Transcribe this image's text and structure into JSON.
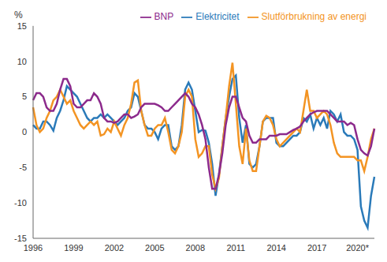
{
  "chart_data": {
    "type": "line",
    "y_label": "%",
    "categories": [
      "1996",
      null,
      null,
      null,
      null,
      null,
      null,
      null,
      null,
      null,
      null,
      null,
      "1999",
      null,
      null,
      null,
      null,
      null,
      null,
      null,
      null,
      null,
      null,
      null,
      "2002",
      null,
      null,
      null,
      null,
      null,
      null,
      null,
      null,
      null,
      null,
      null,
      "2005",
      null,
      null,
      null,
      null,
      null,
      null,
      null,
      null,
      null,
      null,
      null,
      "2008",
      null,
      null,
      null,
      null,
      null,
      null,
      null,
      null,
      null,
      null,
      null,
      "2011",
      null,
      null,
      null,
      null,
      null,
      null,
      null,
      null,
      null,
      null,
      null,
      "2014",
      null,
      null,
      null,
      null,
      null,
      null,
      null,
      null,
      null,
      null,
      null,
      "2017",
      null,
      null,
      null,
      null,
      null,
      null,
      null,
      null,
      null,
      null,
      null,
      "2020*",
      null,
      null,
      null,
      null,
      null
    ],
    "series": [
      {
        "name": "Elektricitet",
        "color": "#2a7ab9",
        "values": [
          1,
          0.5,
          0.5,
          1.5,
          1.5,
          1,
          0.2,
          2,
          3,
          4.5,
          6.5,
          6,
          5.5,
          5,
          4,
          3,
          2,
          1.5,
          2,
          2,
          2.5,
          2,
          2.5,
          2,
          1.5,
          1,
          1.5,
          2,
          3,
          3.5,
          5.5,
          5,
          3,
          1,
          0.5,
          0.5,
          0,
          -1,
          0.5,
          1,
          1,
          -2,
          -2.5,
          -2,
          1,
          6,
          7,
          6,
          3,
          0,
          0.3,
          0.2,
          -1.5,
          -4.5,
          -9,
          -6,
          -2,
          2,
          5,
          7.5,
          8,
          2,
          -1.5,
          1,
          -4.5,
          -5,
          -4.5,
          -2,
          1.5,
          2,
          2,
          2,
          -1.5,
          -2,
          -2,
          -1.5,
          -1,
          -0.5,
          -0.5,
          0,
          2,
          1.5,
          2.5,
          0.5,
          2,
          1,
          2,
          0.5,
          3,
          2.5,
          1.5,
          2.5,
          0,
          -0.5,
          -0.5,
          -1,
          -2.5,
          -10.5,
          -12.5,
          -13.5,
          -9,
          -6.3
        ]
      },
      {
        "name": "Slutförbrukning av energi",
        "color": "#f39423",
        "values": [
          3.5,
          1,
          0,
          0.5,
          2,
          3,
          4.5,
          5,
          6,
          5,
          4,
          4.5,
          3,
          2,
          1,
          0.5,
          1,
          1.5,
          1,
          1.5,
          -0.5,
          -0.3,
          0.5,
          0,
          1.5,
          0.5,
          -0.5,
          1,
          2,
          4,
          7,
          7.3,
          3,
          1,
          -0.5,
          -0.5,
          0.5,
          1,
          1,
          2,
          0,
          -2.5,
          -3,
          -2,
          0,
          5,
          6,
          5,
          -1,
          -3.5,
          -3,
          -2,
          -2,
          -6,
          -8,
          -6.5,
          -2,
          2,
          6.5,
          9.8,
          4,
          -2,
          -4.5,
          0.5,
          -4,
          -5.5,
          -5.5,
          -2,
          1.5,
          2.3,
          2,
          1,
          -1,
          -2,
          -1.5,
          -1,
          -0.5,
          0,
          0.5,
          0,
          3,
          6,
          3,
          3,
          2,
          2.5,
          3,
          2.5,
          1,
          -1.5,
          -3,
          -3.5,
          -3.5,
          -3.5,
          -3.5,
          -3.5,
          -4,
          -4,
          -5.5,
          -3.5,
          -1,
          0.5
        ]
      },
      {
        "name": "BNP",
        "color": "#8c2a8c",
        "values": [
          4.5,
          5.5,
          5.5,
          5,
          3.5,
          3,
          3,
          4,
          6,
          7.5,
          7.5,
          6.5,
          4,
          3.5,
          3.5,
          4,
          4.5,
          4.5,
          5.5,
          5,
          4,
          2,
          1.5,
          1.5,
          1.3,
          1.5,
          2,
          2.5,
          2.5,
          2,
          2.2,
          2.5,
          3.5,
          4,
          4,
          4,
          4,
          3.8,
          3.5,
          3,
          3,
          3.5,
          4,
          4.5,
          5,
          5.5,
          5,
          4,
          3.5,
          2.5,
          1,
          -1,
          -5,
          -8,
          -8,
          -6,
          -3,
          1,
          3.5,
          5,
          5,
          3.5,
          2,
          1.5,
          -0.5,
          -1.5,
          -1.5,
          -1,
          -1,
          -1,
          -0.5,
          -0.5,
          -0.5,
          -0.3,
          -0.3,
          -0.3,
          0,
          0.3,
          0.5,
          0.8,
          1.5,
          2,
          2.5,
          2.8,
          3,
          3,
          3,
          3,
          2.5,
          2,
          1.5,
          1.5,
          1.5,
          1,
          1.3,
          1,
          -1,
          -2.5,
          -3,
          -3.3,
          -2,
          0.5
        ]
      }
    ],
    "ylim": [
      -15,
      15
    ],
    "yticks": [
      -15,
      -10,
      -5,
      0,
      5,
      10,
      15
    ],
    "grid": false,
    "legend": "top"
  }
}
